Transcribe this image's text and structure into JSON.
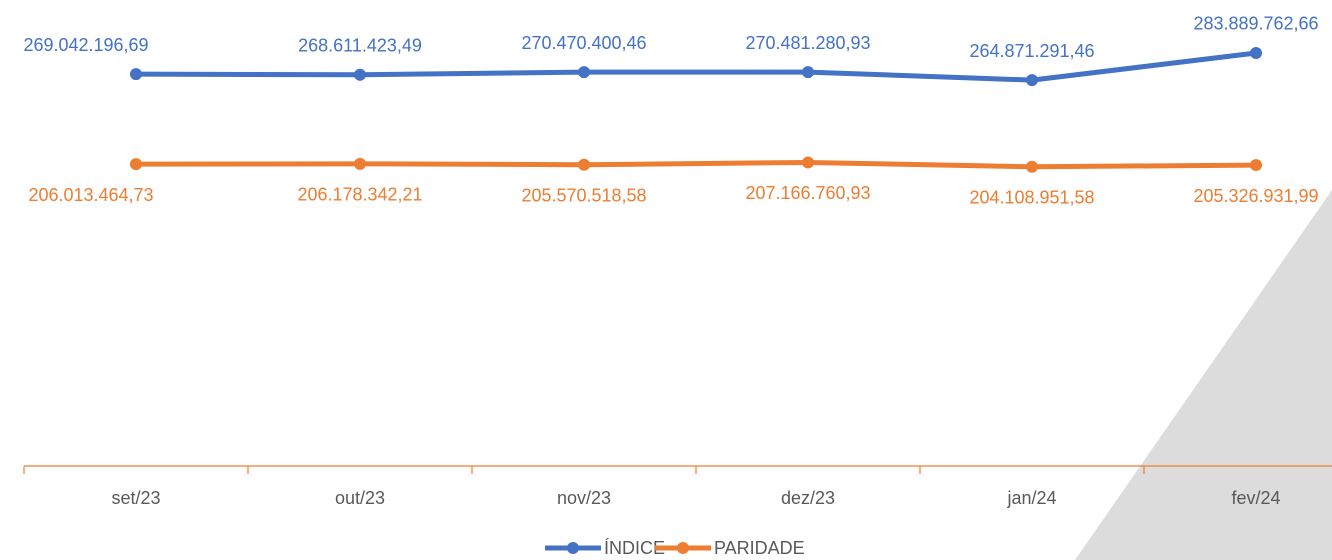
{
  "chart_data": {
    "type": "line",
    "categories": [
      "set/23",
      "out/23",
      "nov/23",
      "dez/23",
      "jan/24",
      "fev/24"
    ],
    "series": [
      {
        "name": "ÍNDICE",
        "color": "#4472c4",
        "values": [
          269042196.69,
          268611423.49,
          270470400.46,
          270481280.93,
          264871291.46,
          283889762.66
        ],
        "value_labels": [
          "269.042.196,69",
          "268.611.423,49",
          "270.470.400,46",
          "270.481.280,93",
          "264.871.291,46",
          "283.889.762,66"
        ]
      },
      {
        "name": "PARIDADE",
        "color": "#ed7d31",
        "values": [
          206013464.73,
          206178342.21,
          205570518.58,
          207166760.93,
          204108951.58,
          205326931.99
        ],
        "value_labels": [
          "206.013.464,73",
          "206.178.342,21",
          "205.570.518,58",
          "207.166.760,93",
          "204.108.951,58",
          "205.326.931,99"
        ]
      }
    ],
    "ylim": [
      0,
      300000000
    ],
    "legend": "bottom"
  }
}
